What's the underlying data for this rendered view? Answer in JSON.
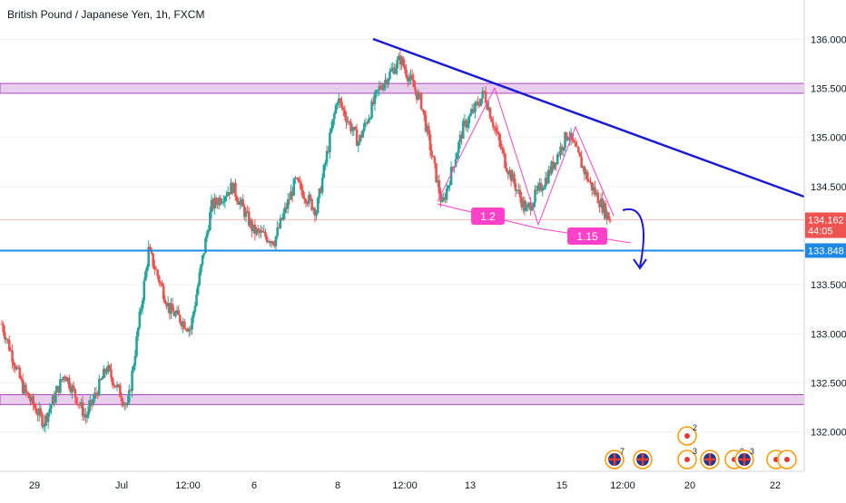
{
  "header": {
    "title": "British Pound / Japanese Yen, 1h, FXCM"
  },
  "colors": {
    "up": "#26a69a",
    "down": "#ef5350",
    "trendline": "#1a1ad6",
    "support_line": "#1e88e5",
    "zone_fill": "#e1bee7",
    "zone_border": "#ab47bc",
    "pattern": "#ff40c8",
    "grid": "#f0f3fa",
    "axis_text": "#131722"
  },
  "chart_data": {
    "type": "candlestick",
    "title": "British Pound / Japanese Yen, 1h, FXCM",
    "ylim": [
      131.6,
      136.4
    ],
    "grid": false,
    "y_ticks": [
      "136.000",
      "135.500",
      "135.000",
      "134.500",
      "133.500",
      "133.000",
      "132.500",
      "132.000"
    ],
    "y_tick_values": [
      136.0,
      135.5,
      135.0,
      134.5,
      133.5,
      133.0,
      132.5,
      132.0
    ],
    "x_ticks": [
      "29",
      "Jul",
      "12:00",
      "6",
      "8",
      "12:00",
      "13",
      "15",
      "12:00",
      "20",
      "22"
    ],
    "price_labels": [
      {
        "text": "134.162",
        "value": 134.162,
        "color": "#ef5350"
      },
      {
        "text": "44:05",
        "value": 134.05,
        "color": "#ef5350"
      },
      {
        "text": "133.848",
        "value": 133.848,
        "color": "#1e88e5"
      }
    ],
    "current_price": 134.162,
    "support_level": 133.848,
    "zones": [
      {
        "from": 135.45,
        "to": 135.55
      },
      {
        "from": 132.28,
        "to": 132.38
      }
    ],
    "trendline": {
      "from": [
        -8,
        136.02
      ],
      "to": [
        1,
        134.42
      ]
    },
    "pattern_labels": [
      {
        "text": "1.2",
        "x": -6.2,
        "y": 134.18
      },
      {
        "text": "1.15",
        "x": -4.8,
        "y": 133.97
      }
    ],
    "events": [
      {
        "flag": "uk",
        "count": "7"
      },
      {
        "flag": "uk",
        "count": ""
      },
      {
        "flag": "jp",
        "count": "2"
      },
      {
        "flag": "jp",
        "count": "3"
      },
      {
        "flag": "uk",
        "count": ""
      },
      {
        "flag": "jp",
        "count": "9"
      },
      {
        "flag": "uk",
        "count": "3"
      },
      {
        "flag": "jp",
        "count": ""
      },
      {
        "flag": "jp",
        "count": ""
      }
    ],
    "anchors": [
      [
        133.1,
        1.0
      ],
      [
        132.45,
        0.6
      ],
      [
        132.1,
        0.6
      ],
      [
        132.6,
        0.3
      ],
      [
        132.15,
        0.6
      ],
      [
        132.65,
        0.6
      ],
      [
        132.25,
        0.6
      ],
      [
        133.85,
        0.6
      ],
      [
        133.25,
        0.6
      ],
      [
        133.05,
        0.6
      ],
      [
        134.3,
        0.6
      ],
      [
        134.5,
        0.6
      ],
      [
        134.05,
        0.4
      ],
      [
        133.95,
        0.4
      ],
      [
        134.55,
        0.4
      ],
      [
        134.25,
        0.6
      ],
      [
        135.4,
        0.5
      ],
      [
        134.95,
        0.6
      ],
      [
        135.5,
        0.5
      ],
      [
        135.8,
        0.6
      ],
      [
        135.35,
        0.5
      ],
      [
        134.3,
        0.5
      ],
      [
        135.1,
        0.5
      ],
      [
        135.45,
        0.5
      ],
      [
        134.75,
        0.6
      ],
      [
        134.25,
        0.6
      ],
      [
        134.6,
        0.5
      ],
      [
        135.05,
        0.6
      ],
      [
        134.55,
        0.5
      ],
      [
        134.16,
        0.5
      ]
    ]
  }
}
